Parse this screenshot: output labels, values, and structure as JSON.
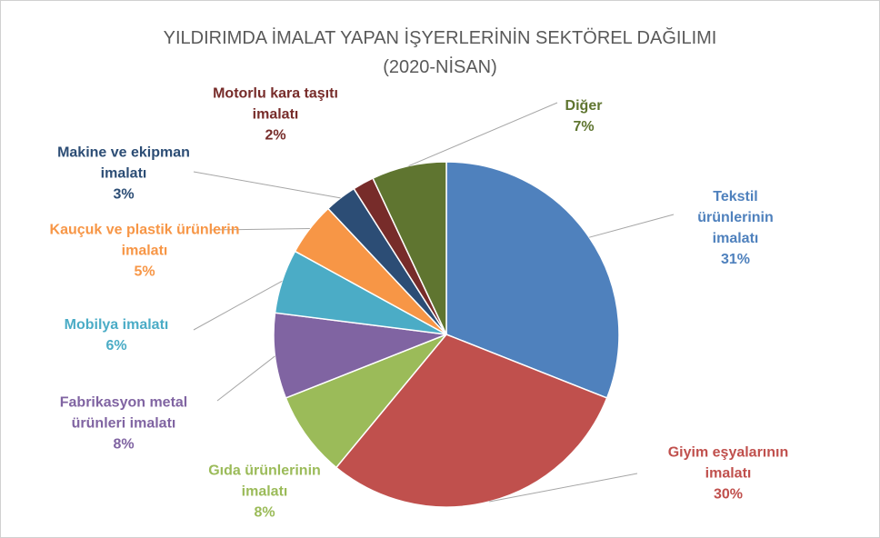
{
  "chart_data": {
    "type": "pie",
    "title": "YILDIRIMDA İMALAT YAPAN İŞYERLERİNİN SEKTÖREL DAĞILIMI",
    "subtitle": "(2020-NİSAN)",
    "categories": [
      "Tekstil ürünlerinin imalatı",
      "Giyim eşyalarının imalatı",
      "Gıda ürünlerinin imalatı",
      "Fabrikasyon metal ürünleri imalatı",
      "Mobilya imalatı",
      "Kauçuk ve plastik ürünlerin imalatı",
      "Makine ve ekipman imalatı",
      "Motorlu kara taşıtı imalatı",
      "Diğer"
    ],
    "values": [
      31,
      30,
      8,
      8,
      6,
      5,
      3,
      2,
      7
    ],
    "value_labels": [
      "31%",
      "30%",
      "8%",
      "8%",
      "6%",
      "5%",
      "3%",
      "2%",
      "7%"
    ],
    "colors": [
      "#4f81bd",
      "#c0504d",
      "#9bbb59",
      "#8064a2",
      "#4bacc6",
      "#f79646",
      "#2c4d75",
      "#772c2a",
      "#5f7530"
    ]
  }
}
